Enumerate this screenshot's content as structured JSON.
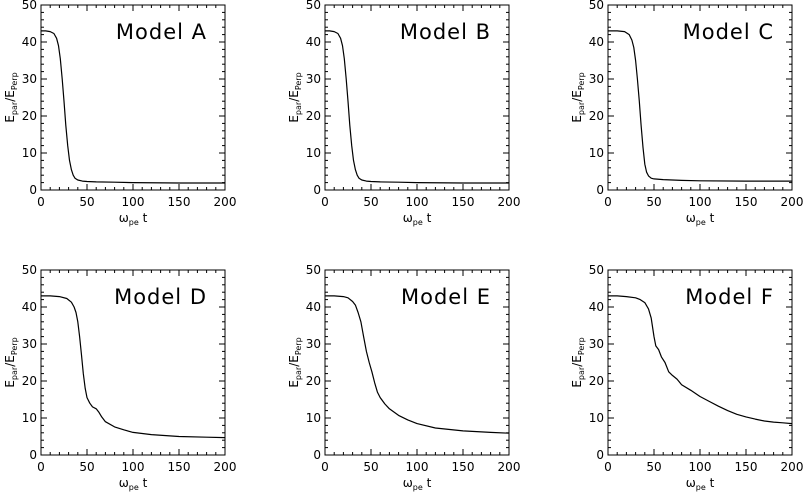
{
  "chart_data": [
    {
      "type": "line",
      "title": "Model A",
      "xlabel": "ω",
      "xlabel_sub": "pe",
      "xlabel_suffix": " t",
      "ylabel_main1": "E",
      "ylabel_sub1": "par",
      "ylabel_sep": "/",
      "ylabel_main2": "E",
      "ylabel_sub2": "Perp",
      "xlim": [
        0,
        200
      ],
      "ylim": [
        0,
        50
      ],
      "xticks": [
        "0",
        "50",
        "100",
        "150",
        "200"
      ],
      "yticks": [
        "0",
        "10",
        "20",
        "30",
        "40",
        "50"
      ],
      "x": [
        0,
        5,
        10,
        14,
        17,
        19,
        21,
        23,
        25,
        27,
        29,
        31,
        33,
        35,
        37,
        40,
        45,
        50,
        60,
        80,
        100,
        150,
        200
      ],
      "y": [
        43,
        43,
        42.8,
        42.3,
        41,
        39,
        35.5,
        30,
        24,
        17.5,
        12,
        8,
        5.5,
        4,
        3.2,
        2.7,
        2.4,
        2.3,
        2.2,
        2.1,
        2.0,
        1.9,
        1.9
      ]
    },
    {
      "type": "line",
      "title": "Model B",
      "xlabel": "ω",
      "xlabel_sub": "pe",
      "xlabel_suffix": " t",
      "ylabel_main1": "E",
      "ylabel_sub1": "par",
      "ylabel_sep": "/",
      "ylabel_main2": "E",
      "ylabel_sub2": "Perp",
      "xlim": [
        0,
        200
      ],
      "ylim": [
        0,
        50
      ],
      "xticks": [
        "0",
        "50",
        "100",
        "150",
        "200"
      ],
      "yticks": [
        "0",
        "10",
        "20",
        "30",
        "40",
        "50"
      ],
      "x": [
        0,
        5,
        10,
        14,
        17,
        19,
        21,
        23,
        25,
        27,
        29,
        31,
        33,
        35,
        37,
        40,
        45,
        50,
        60,
        80,
        100,
        150,
        200
      ],
      "y": [
        43,
        43,
        42.8,
        42.3,
        41,
        39,
        35.5,
        30,
        24,
        17.5,
        12,
        8,
        5.5,
        4,
        3.2,
        2.7,
        2.4,
        2.3,
        2.2,
        2.1,
        2.0,
        1.9,
        1.9
      ]
    },
    {
      "type": "line",
      "title": "Model C",
      "xlabel": "ω",
      "xlabel_sub": "pe",
      "xlabel_suffix": " t",
      "ylabel_main1": "E",
      "ylabel_sub1": "par",
      "ylabel_sep": "/",
      "ylabel_main2": "E",
      "ylabel_sub2": "Perp",
      "xlim": [
        0,
        200
      ],
      "ylim": [
        0,
        50
      ],
      "xticks": [
        "0",
        "50",
        "100",
        "150",
        "200"
      ],
      "yticks": [
        "0",
        "10",
        "20",
        "30",
        "40",
        "50"
      ],
      "x": [
        0,
        10,
        18,
        23,
        26,
        28,
        30,
        32,
        34,
        36,
        38,
        40,
        42,
        44,
        47,
        50,
        60,
        80,
        100,
        150,
        200
      ],
      "y": [
        43,
        43,
        42.8,
        42,
        40.5,
        38.5,
        35,
        30,
        24,
        17.5,
        11.5,
        7,
        4.8,
        3.8,
        3.2,
        3.0,
        2.8,
        2.6,
        2.5,
        2.4,
        2.4
      ]
    },
    {
      "type": "line",
      "title": "Model D",
      "xlabel": "ω",
      "xlabel_sub": "pe",
      "xlabel_suffix": " t",
      "ylabel_main1": "E",
      "ylabel_sub1": "par",
      "ylabel_sep": "/",
      "ylabel_main2": "E",
      "ylabel_sub2": "Perp",
      "xlim": [
        0,
        200
      ],
      "ylim": [
        0,
        50
      ],
      "xticks": [
        "0",
        "50",
        "100",
        "150",
        "200"
      ],
      "yticks": [
        "0",
        "10",
        "20",
        "30",
        "40",
        "50"
      ],
      "x": [
        0,
        10,
        20,
        28,
        33,
        36,
        38,
        40,
        42,
        44,
        46,
        48,
        50,
        53,
        56,
        60,
        63,
        66,
        70,
        80,
        90,
        100,
        120,
        150,
        180,
        200
      ],
      "y": [
        43,
        43,
        42.8,
        42.3,
        41.3,
        40,
        38.5,
        36,
        32,
        27,
        22,
        18,
        15.5,
        14,
        13,
        12.5,
        11.5,
        10.3,
        9,
        7.6,
        6.8,
        6.1,
        5.5,
        5.0,
        4.8,
        4.7
      ]
    },
    {
      "type": "line",
      "title": "Model E",
      "xlabel": "ω",
      "xlabel_sub": "pe",
      "xlabel_suffix": " t",
      "ylabel_main1": "E",
      "ylabel_sub1": "par",
      "ylabel_sep": "/",
      "ylabel_main2": "E",
      "ylabel_sub2": "Perp",
      "xlim": [
        0,
        200
      ],
      "ylim": [
        0,
        50
      ],
      "xticks": [
        "0",
        "50",
        "100",
        "150",
        "200"
      ],
      "yticks": [
        "0",
        "10",
        "20",
        "30",
        "40",
        "50"
      ],
      "x": [
        0,
        10,
        20,
        25,
        30,
        33,
        36,
        39,
        42,
        45,
        48,
        51,
        54,
        57,
        60,
        65,
        70,
        80,
        90,
        100,
        120,
        150,
        180,
        200
      ],
      "y": [
        43,
        43,
        42.8,
        42.5,
        41.5,
        40.5,
        38.5,
        36,
        32,
        28,
        25,
        22.5,
        19.5,
        17,
        15.5,
        13.8,
        12.5,
        10.7,
        9.5,
        8.5,
        7.3,
        6.5,
        6.1,
        5.9
      ]
    },
    {
      "type": "line",
      "title": "Model F",
      "xlabel": "ω",
      "xlabel_sub": "pe",
      "xlabel_suffix": " t",
      "ylabel_main1": "E",
      "ylabel_sub1": "par",
      "ylabel_sep": "/",
      "ylabel_main2": "E",
      "ylabel_sub2": "Perp",
      "xlim": [
        0,
        200
      ],
      "ylim": [
        0,
        50
      ],
      "xticks": [
        "0",
        "50",
        "100",
        "150",
        "200"
      ],
      "yticks": [
        "0",
        "10",
        "20",
        "30",
        "40",
        "50"
      ],
      "x": [
        0,
        10,
        20,
        30,
        35,
        40,
        44,
        47,
        50,
        52,
        55,
        58,
        62,
        66,
        70,
        75,
        80,
        90,
        100,
        110,
        120,
        130,
        140,
        150,
        160,
        170,
        180,
        190,
        200
      ],
      "y": [
        43,
        43,
        42.8,
        42.5,
        42,
        41.2,
        39.5,
        37,
        32,
        29.5,
        28.5,
        26.5,
        25,
        22.5,
        21.5,
        20.5,
        19,
        17.5,
        15.8,
        14.5,
        13.2,
        12,
        11,
        10.3,
        9.7,
        9.2,
        8.9,
        8.7,
        8.5
      ]
    }
  ]
}
